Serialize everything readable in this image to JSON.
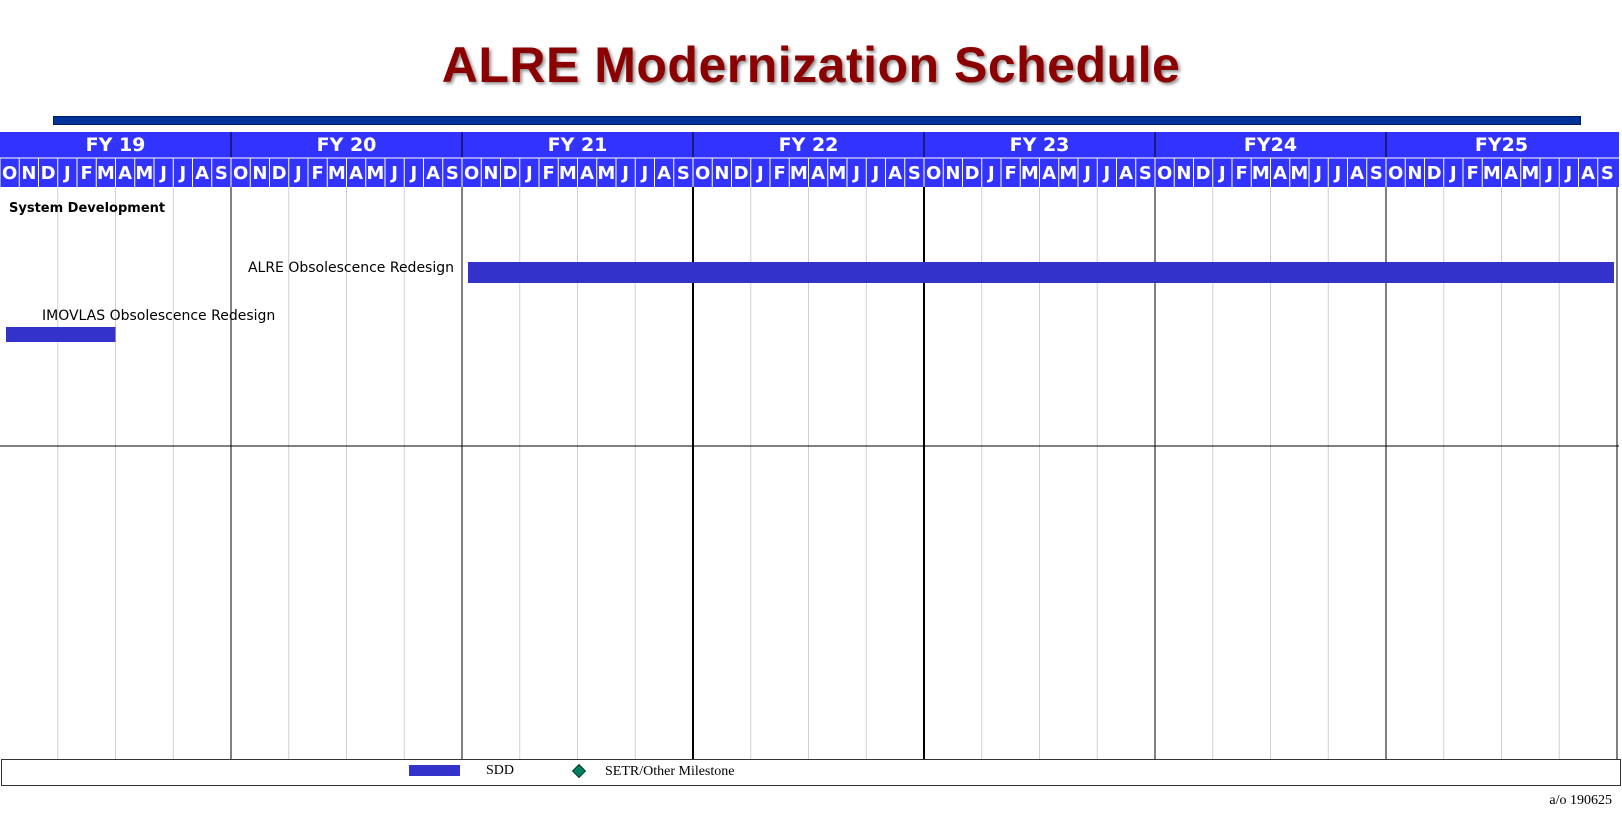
{
  "title": "ALRE Modernization Schedule",
  "colors": {
    "title": "#8b0000",
    "header": "#3333ff",
    "header_text": "#ffffff",
    "bar": "#3333cc",
    "milestone": "#008060"
  },
  "chart_data": {
    "type": "gantt",
    "fiscal_years": [
      "FY 19",
      "FY 20",
      "FY 21",
      "FY 22",
      "FY 23",
      "FY24",
      "FY25"
    ],
    "months": [
      "O",
      "N",
      "D",
      "J",
      "F",
      "M",
      "A",
      "M",
      "J",
      "J",
      "A",
      "S"
    ],
    "section": "System Development",
    "tasks": [
      {
        "label": "ALRE Obsolescence Redesign",
        "start": "FY21-Oct",
        "end": "FY25-Sep",
        "label_side": "left"
      },
      {
        "label": "IMOVLAS Obsolescence Redesign",
        "start": "FY19-Oct",
        "end": "FY19-Mar",
        "label_side": "above"
      }
    ],
    "legend": [
      {
        "label": "SDD",
        "symbol": "bar"
      },
      {
        "label": "SETR/Other  Milestone",
        "symbol": "diamond"
      }
    ]
  },
  "asof": "a/o 190625"
}
